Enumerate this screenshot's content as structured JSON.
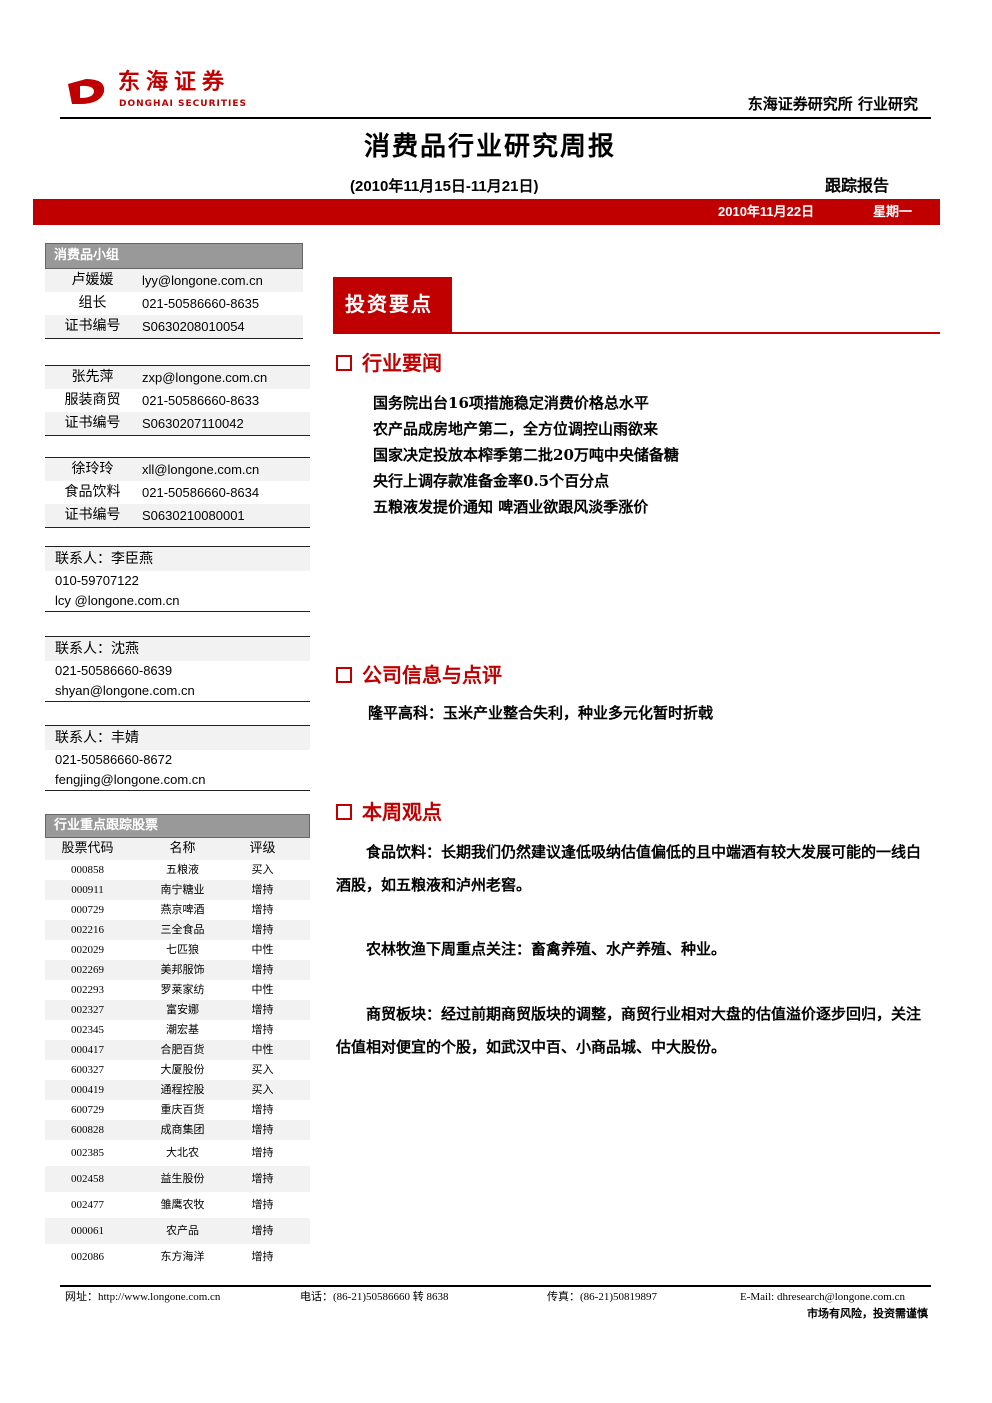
{
  "header": {
    "logo_cn": "东海证券",
    "logo_en": "DONGHAI SECURITIES",
    "right": "东海证券研究所  行业研究",
    "title": "消费品行业研究周报",
    "date_range": "(2010年11月15日-11月21日)",
    "report_type": "跟踪报告",
    "date": "2010年11月22日",
    "weekday": "星期一",
    "accent": "#c00000"
  },
  "sidebar": {
    "group_title": "消费品小组",
    "analysts": [
      {
        "name": "卢媛媛",
        "email": "lyy@longone.com.cn",
        "role": "组长",
        "phone": "021-50586660-8635",
        "cert_label": "证书编号",
        "cert": "S0630208010054"
      },
      {
        "name": "张先萍",
        "email": "zxp@longone.com.cn",
        "role": "服装商贸",
        "phone": "021-50586660-8633",
        "cert_label": "证书编号",
        "cert": "S0630207110042"
      },
      {
        "name": "徐玲玲",
        "email": "xll@longone.com.cn",
        "role": "食品饮料",
        "phone": "021-50586660-8634",
        "cert_label": "证书编号",
        "cert": "S0630210080001"
      }
    ],
    "contacts": [
      {
        "name": "联系人：李臣燕",
        "phone": "010-59707122",
        "email": "lcy @longone.com.cn"
      },
      {
        "name": "联系人：沈燕",
        "phone": "021-50586660-8639",
        "email": "shyan@longone.com.cn"
      },
      {
        "name": "联系人：丰婧",
        "phone": "021-50586660-8672",
        "email": "fengjing@longone.com.cn"
      }
    ],
    "stocks_title": "行业重点跟踪股票",
    "stock_headers": [
      "股票代码",
      "名称",
      "评级"
    ],
    "stocks": [
      [
        "000858",
        "五粮液",
        "买入"
      ],
      [
        "000911",
        "南宁糖业",
        "增持"
      ],
      [
        "000729",
        "燕京啤酒",
        "增持"
      ],
      [
        "002216",
        "三全食品",
        "增持"
      ],
      [
        "002029",
        "七匹狼",
        "中性"
      ],
      [
        "002269",
        "美邦服饰",
        "增持"
      ],
      [
        "002293",
        "罗莱家纺",
        "中性"
      ],
      [
        "002327",
        "富安娜",
        "增持"
      ],
      [
        "002345",
        "潮宏基",
        "增持"
      ],
      [
        "000417",
        "合肥百货",
        "中性"
      ],
      [
        "600327",
        "大厦股份",
        "买入"
      ],
      [
        "000419",
        "通程控股",
        "买入"
      ],
      [
        "600729",
        "重庆百货",
        "增持"
      ],
      [
        "600828",
        "成商集团",
        "增持"
      ],
      [
        "002385",
        "大北农",
        "增持"
      ],
      [
        "002458",
        "益生股份",
        "增持"
      ],
      [
        "002477",
        "雏鹰农牧",
        "增持"
      ],
      [
        "000061",
        "农产品",
        "增持"
      ],
      [
        "002086",
        "东方海洋",
        "增持"
      ]
    ]
  },
  "main": {
    "invest_tab": "投资要点",
    "sec1": "行业要闻",
    "news": [
      "国务院出台16项措施稳定消费价格总水平",
      "农产品成房地产第二，全方位调控山雨欲来",
      "国家决定投放本榨季第二批20万吨中央储备糖",
      "央行上调存款准备金率0.5个百分点",
      "五粮液发提价通知 啤酒业欲跟风淡季涨价"
    ],
    "sec2": "公司信息与点评",
    "company": "隆平高科：玉米产业整合失利，种业多元化暂时折戟",
    "sec3": "本周观点",
    "views": [
      "食品饮料：长期我们仍然建议逢低吸纳估值偏低的且中端酒有较大发展可能的一线白酒股，如五粮液和泸州老窖。",
      "农林牧渔下周重点关注：畜禽养殖、水产养殖、种业。",
      "商贸板块：经过前期商贸版块的调整，商贸行业相对大盘的估值溢价逐步回归，关注估值相对便宜的个股，如武汉中百、小商品城、中大股份。"
    ]
  },
  "footer": {
    "web": "网址：http://www.longone.com.cn",
    "tel": "电话：(86-21)50586660 转 8638",
    "fax": "传真：(86-21)50819897",
    "email": "E-Mail: dhresearch@longone.com.cn",
    "risk": "市场有风险，投资需谨慎"
  }
}
